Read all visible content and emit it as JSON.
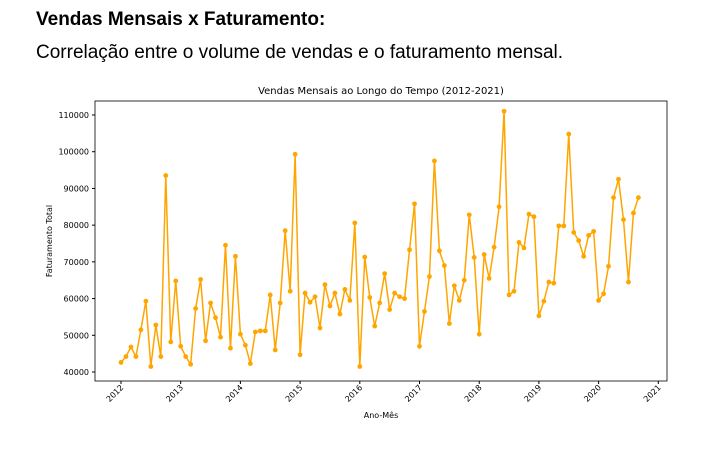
{
  "heading": "Vendas Mensais x Faturamento:",
  "subheading": "Correlação entre o volume de vendas e o faturamento mensal.",
  "chart_data": {
    "type": "line",
    "title": "Vendas Mensais ao Longo do Tempo (2012-2021)",
    "xlabel": "Ano-Mês",
    "ylabel": "Faturamento Total",
    "color": "#FFA500",
    "start": "2012-01",
    "xticks": [
      "2012",
      "2013",
      "2014",
      "2015",
      "2016",
      "2017",
      "2018",
      "2019",
      "2020",
      "2021"
    ],
    "yticks": [
      40000,
      50000,
      60000,
      70000,
      80000,
      90000,
      100000,
      110000
    ],
    "ylim": [
      38000,
      113000
    ],
    "values": [
      42600,
      44200,
      46800,
      44200,
      51500,
      59300,
      41500,
      52800,
      44200,
      93500,
      48200,
      64800,
      47000,
      44200,
      42100,
      57300,
      65200,
      48500,
      58800,
      54800,
      49500,
      74500,
      46500,
      71500,
      50300,
      47300,
      42300,
      50900,
      51200,
      51200,
      61000,
      46000,
      58800,
      78500,
      62000,
      99300,
      44700,
      61500,
      59000,
      60500,
      52000,
      63800,
      58000,
      61500,
      55800,
      62500,
      59500,
      80600,
      41500,
      71300,
      60300,
      52500,
      58800,
      66800,
      57000,
      61500,
      60500,
      60000,
      73300,
      85800,
      47000,
      56500,
      66000,
      97500,
      73000,
      69000,
      53200,
      63500,
      59500,
      65000,
      82800,
      71200,
      50300,
      72000,
      65500,
      74000,
      85000,
      111000,
      61000,
      62000,
      75300,
      73800,
      83000,
      82300,
      55300,
      59300,
      64500,
      64200,
      79800,
      79800,
      104800,
      78000,
      75800,
      71500,
      77200,
      78300,
      59500,
      61300,
      68800,
      87500,
      92500,
      81500,
      64500,
      83300,
      87500
    ]
  }
}
